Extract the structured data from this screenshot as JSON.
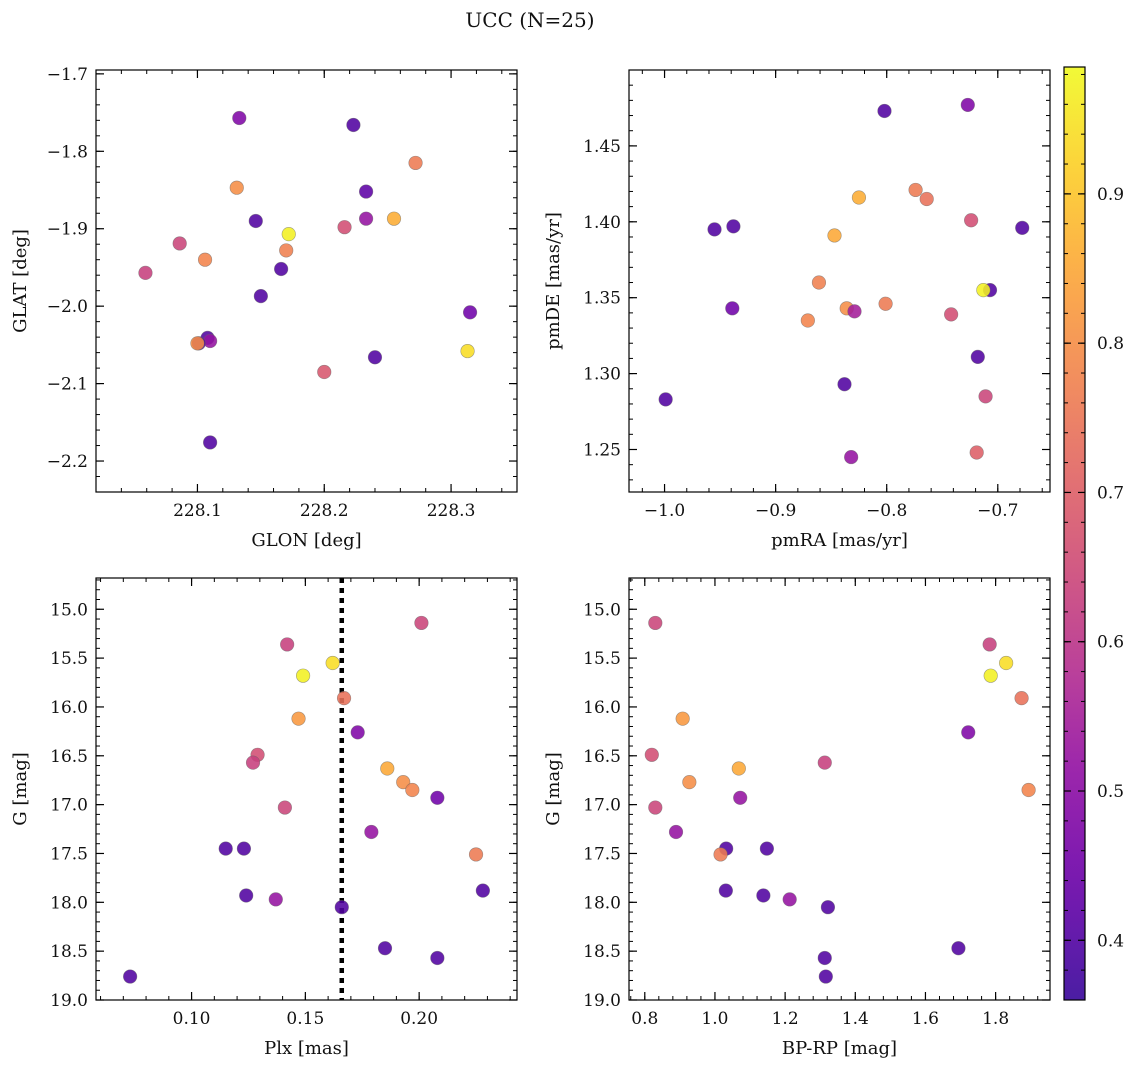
{
  "figure": {
    "title": "UCC (N=25)"
  },
  "colorbar": {
    "colormap": "plasma",
    "range": [
      0.36,
      0.985
    ],
    "ticks": [
      "0.4",
      "0.5",
      "0.6",
      "0.7",
      "0.8",
      "0.9"
    ],
    "tick_values": [
      0.4,
      0.5,
      0.6,
      0.7,
      0.8,
      0.9
    ]
  },
  "chart_data": [
    {
      "id": "glon-glat",
      "type": "scatter",
      "xlabel": "GLON [deg]",
      "ylabel": "GLAT [deg]",
      "xlim": [
        228.02,
        228.352
      ],
      "ylim": [
        -2.24,
        -1.695
      ],
      "yinvert": false,
      "xticks": [
        228.1,
        228.2,
        228.3
      ],
      "xticklabels": [
        "228.1",
        "228.2",
        "228.3"
      ],
      "yticks": [
        -1.7,
        -1.8,
        -1.9,
        -2.0,
        -2.1,
        -2.2
      ],
      "yticklabels": [
        "−1.7",
        "−1.8",
        "−1.9",
        "−2.0",
        "−2.1",
        "−2.2"
      ],
      "points": [
        {
          "x": 228.133,
          "y": -1.757,
          "c": 0.48
        },
        {
          "x": 228.223,
          "y": -1.766,
          "c": 0.4
        },
        {
          "x": 228.272,
          "y": -1.815,
          "c": 0.76
        },
        {
          "x": 228.131,
          "y": -1.847,
          "c": 0.8
        },
        {
          "x": 228.233,
          "y": -1.852,
          "c": 0.42
        },
        {
          "x": 228.255,
          "y": -1.887,
          "c": 0.86
        },
        {
          "x": 228.233,
          "y": -1.887,
          "c": 0.52
        },
        {
          "x": 228.146,
          "y": -1.89,
          "c": 0.4
        },
        {
          "x": 228.216,
          "y": -1.898,
          "c": 0.66
        },
        {
          "x": 228.172,
          "y": -1.907,
          "c": 0.97
        },
        {
          "x": 228.086,
          "y": -1.919,
          "c": 0.64
        },
        {
          "x": 228.17,
          "y": -1.928,
          "c": 0.77
        },
        {
          "x": 228.106,
          "y": -1.94,
          "c": 0.78
        },
        {
          "x": 228.059,
          "y": -1.957,
          "c": 0.63
        },
        {
          "x": 228.166,
          "y": -1.952,
          "c": 0.4
        },
        {
          "x": 228.15,
          "y": -1.987,
          "c": 0.4
        },
        {
          "x": 228.315,
          "y": -2.008,
          "c": 0.45
        },
        {
          "x": 228.108,
          "y": -2.041,
          "c": 0.4
        },
        {
          "x": 228.11,
          "y": -2.045,
          "c": 0.52
        },
        {
          "x": 228.101,
          "y": -2.048,
          "c": 0.4
        },
        {
          "x": 228.1,
          "y": -2.048,
          "c": 0.8
        },
        {
          "x": 228.313,
          "y": -2.058,
          "c": 0.94
        },
        {
          "x": 228.24,
          "y": -2.066,
          "c": 0.4
        },
        {
          "x": 228.2,
          "y": -2.085,
          "c": 0.68
        },
        {
          "x": 228.11,
          "y": -2.176,
          "c": 0.4
        }
      ]
    },
    {
      "id": "pmra-pmde",
      "type": "scatter",
      "xlabel": "pmRA [mas/yr]",
      "ylabel": "pmDE [mas/yr]",
      "xlim": [
        -1.032,
        -0.653
      ],
      "ylim": [
        1.222,
        1.5
      ],
      "yinvert": false,
      "xticks": [
        -1.0,
        -0.9,
        -0.8,
        -0.7
      ],
      "xticklabels": [
        "−1.0",
        "−0.9",
        "−0.8",
        "−0.7"
      ],
      "yticks": [
        1.25,
        1.3,
        1.35,
        1.4,
        1.45
      ],
      "yticklabels": [
        "1.25",
        "1.30",
        "1.35",
        "1.40",
        "1.45"
      ],
      "points": [
        {
          "x": -0.727,
          "y": 1.477,
          "c": 0.48
        },
        {
          "x": -0.802,
          "y": 1.473,
          "c": 0.4
        },
        {
          "x": -0.774,
          "y": 1.421,
          "c": 0.76
        },
        {
          "x": -0.825,
          "y": 1.416,
          "c": 0.86
        },
        {
          "x": -0.764,
          "y": 1.415,
          "c": 0.74
        },
        {
          "x": -0.724,
          "y": 1.401,
          "c": 0.66
        },
        {
          "x": -0.938,
          "y": 1.397,
          "c": 0.4
        },
        {
          "x": -0.678,
          "y": 1.396,
          "c": 0.4
        },
        {
          "x": -0.955,
          "y": 1.395,
          "c": 0.4
        },
        {
          "x": -0.847,
          "y": 1.391,
          "c": 0.85
        },
        {
          "x": -0.861,
          "y": 1.36,
          "c": 0.77
        },
        {
          "x": -0.707,
          "y": 1.355,
          "c": 0.4
        },
        {
          "x": -0.713,
          "y": 1.355,
          "c": 0.97
        },
        {
          "x": -0.801,
          "y": 1.346,
          "c": 0.76
        },
        {
          "x": -0.939,
          "y": 1.343,
          "c": 0.45
        },
        {
          "x": -0.836,
          "y": 1.343,
          "c": 0.8
        },
        {
          "x": -0.829,
          "y": 1.341,
          "c": 0.55
        },
        {
          "x": -0.742,
          "y": 1.339,
          "c": 0.66
        },
        {
          "x": -0.871,
          "y": 1.335,
          "c": 0.78
        },
        {
          "x": -0.718,
          "y": 1.311,
          "c": 0.4
        },
        {
          "x": -0.838,
          "y": 1.293,
          "c": 0.4
        },
        {
          "x": -0.711,
          "y": 1.285,
          "c": 0.64
        },
        {
          "x": -0.999,
          "y": 1.283,
          "c": 0.4
        },
        {
          "x": -0.719,
          "y": 1.248,
          "c": 0.7
        },
        {
          "x": -0.832,
          "y": 1.245,
          "c": 0.52
        }
      ]
    },
    {
      "id": "plx-g",
      "type": "scatter",
      "xlabel": "Plx [mas]",
      "ylabel": "G [mag]",
      "xlim": [
        0.058,
        0.243
      ],
      "ylim": [
        14.68,
        19.0
      ],
      "yinvert": true,
      "xticks": [
        0.1,
        0.15,
        0.2
      ],
      "xticklabels": [
        "0.10",
        "0.15",
        "0.20"
      ],
      "yticks": [
        15.0,
        15.5,
        16.0,
        16.5,
        17.0,
        17.5,
        18.0,
        18.5,
        19.0
      ],
      "yticklabels": [
        "15.0",
        "15.5",
        "16.0",
        "16.5",
        "17.0",
        "17.5",
        "18.0",
        "18.5",
        "19.0"
      ],
      "vline": {
        "x": 0.166,
        "style": "dotted"
      },
      "points": [
        {
          "x": 0.201,
          "y": 15.14,
          "c": 0.64
        },
        {
          "x": 0.142,
          "y": 15.36,
          "c": 0.63
        },
        {
          "x": 0.162,
          "y": 15.55,
          "c": 0.94
        },
        {
          "x": 0.149,
          "y": 15.68,
          "c": 0.97
        },
        {
          "x": 0.167,
          "y": 15.91,
          "c": 0.74
        },
        {
          "x": 0.147,
          "y": 16.12,
          "c": 0.82
        },
        {
          "x": 0.173,
          "y": 16.26,
          "c": 0.48
        },
        {
          "x": 0.129,
          "y": 16.49,
          "c": 0.66
        },
        {
          "x": 0.127,
          "y": 16.57,
          "c": 0.63
        },
        {
          "x": 0.186,
          "y": 16.63,
          "c": 0.85
        },
        {
          "x": 0.193,
          "y": 16.77,
          "c": 0.8
        },
        {
          "x": 0.197,
          "y": 16.85,
          "c": 0.78
        },
        {
          "x": 0.208,
          "y": 16.93,
          "c": 0.45
        },
        {
          "x": 0.141,
          "y": 17.03,
          "c": 0.64
        },
        {
          "x": 0.179,
          "y": 17.28,
          "c": 0.52
        },
        {
          "x": 0.115,
          "y": 17.45,
          "c": 0.4
        },
        {
          "x": 0.123,
          "y": 17.45,
          "c": 0.4
        },
        {
          "x": 0.225,
          "y": 17.51,
          "c": 0.76
        },
        {
          "x": 0.228,
          "y": 17.88,
          "c": 0.4
        },
        {
          "x": 0.124,
          "y": 17.93,
          "c": 0.4
        },
        {
          "x": 0.137,
          "y": 17.97,
          "c": 0.52
        },
        {
          "x": 0.166,
          "y": 18.05,
          "c": 0.4
        },
        {
          "x": 0.185,
          "y": 18.47,
          "c": 0.4
        },
        {
          "x": 0.208,
          "y": 18.57,
          "c": 0.4
        },
        {
          "x": 0.073,
          "y": 18.76,
          "c": 0.4
        }
      ]
    },
    {
      "id": "bprp-g",
      "type": "scatter",
      "xlabel": "BP-RP [mag]",
      "ylabel": "G [mag]",
      "xlim": [
        0.755,
        1.955
      ],
      "ylim": [
        14.68,
        19.0
      ],
      "yinvert": true,
      "xticks": [
        0.8,
        1.0,
        1.2,
        1.4,
        1.6,
        1.8
      ],
      "xticklabels": [
        "0.8",
        "1.0",
        "1.2",
        "1.4",
        "1.6",
        "1.8"
      ],
      "yticks": [
        15.0,
        15.5,
        16.0,
        16.5,
        17.0,
        17.5,
        18.0,
        18.5,
        19.0
      ],
      "yticklabels": [
        "15.0",
        "15.5",
        "16.0",
        "16.5",
        "17.0",
        "17.5",
        "18.0",
        "18.5",
        "19.0"
      ],
      "points": [
        {
          "x": 0.83,
          "y": 15.14,
          "c": 0.64
        },
        {
          "x": 1.783,
          "y": 15.36,
          "c": 0.63
        },
        {
          "x": 1.83,
          "y": 15.55,
          "c": 0.94
        },
        {
          "x": 1.786,
          "y": 15.68,
          "c": 0.97
        },
        {
          "x": 1.874,
          "y": 15.91,
          "c": 0.74
        },
        {
          "x": 0.908,
          "y": 16.12,
          "c": 0.82
        },
        {
          "x": 1.722,
          "y": 16.26,
          "c": 0.48
        },
        {
          "x": 0.82,
          "y": 16.49,
          "c": 0.66
        },
        {
          "x": 1.313,
          "y": 16.57,
          "c": 0.63
        },
        {
          "x": 1.068,
          "y": 16.63,
          "c": 0.85
        },
        {
          "x": 0.927,
          "y": 16.77,
          "c": 0.8
        },
        {
          "x": 1.894,
          "y": 16.85,
          "c": 0.78
        },
        {
          "x": 1.072,
          "y": 16.93,
          "c": 0.52
        },
        {
          "x": 0.83,
          "y": 17.03,
          "c": 0.64
        },
        {
          "x": 0.889,
          "y": 17.28,
          "c": 0.52
        },
        {
          "x": 1.032,
          "y": 17.45,
          "c": 0.4
        },
        {
          "x": 1.148,
          "y": 17.45,
          "c": 0.4
        },
        {
          "x": 1.016,
          "y": 17.51,
          "c": 0.76
        },
        {
          "x": 1.031,
          "y": 17.88,
          "c": 0.4
        },
        {
          "x": 1.138,
          "y": 17.93,
          "c": 0.4
        },
        {
          "x": 1.213,
          "y": 17.97,
          "c": 0.52
        },
        {
          "x": 1.322,
          "y": 18.05,
          "c": 0.4
        },
        {
          "x": 1.694,
          "y": 18.47,
          "c": 0.4
        },
        {
          "x": 1.313,
          "y": 18.57,
          "c": 0.4
        },
        {
          "x": 1.316,
          "y": 18.76,
          "c": 0.4
        }
      ]
    }
  ]
}
